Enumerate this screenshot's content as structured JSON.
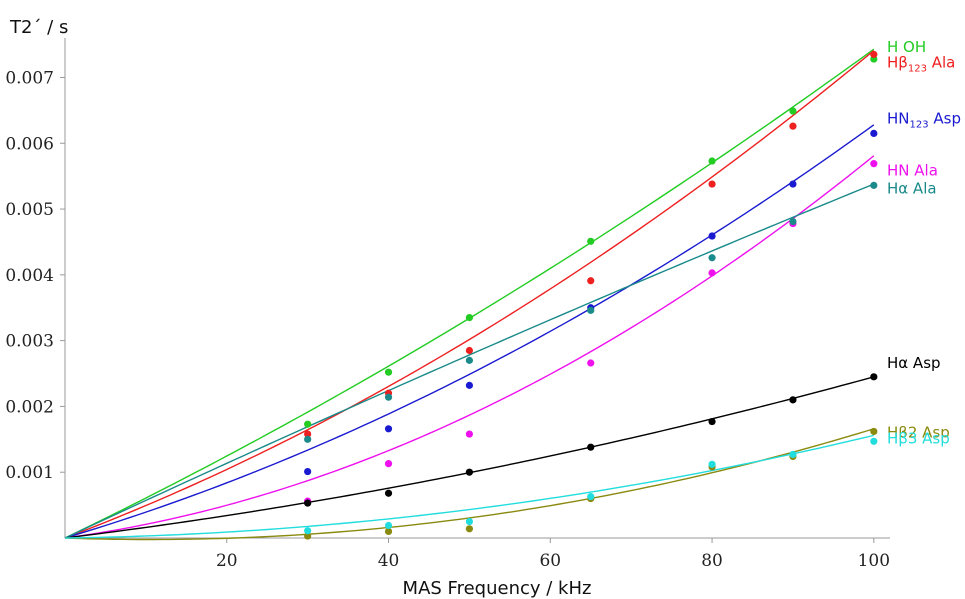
{
  "chart_data": {
    "type": "scatter",
    "xlabel": "MAS Frequency / kHz",
    "ylabel": "T2´ / s",
    "xlim": [
      0,
      102
    ],
    "ylim": [
      0,
      0.0076
    ],
    "x_ticks": [
      20,
      40,
      60,
      80,
      100
    ],
    "y_ticks": [
      0.001,
      0.002,
      0.003,
      0.004,
      0.005,
      0.006,
      0.007
    ],
    "x_tick_labels": [
      "20",
      "40",
      "60",
      "80",
      "100"
    ],
    "y_tick_labels": [
      "0.001",
      "0.002",
      "0.003",
      "0.004",
      "0.005",
      "0.006",
      "0.007"
    ],
    "x": [
      30,
      40,
      50,
      65,
      80,
      90,
      100
    ],
    "grid": false,
    "legend_placement": "right, inline labels",
    "series": [
      {
        "name": "H OH",
        "label_main": "H OH",
        "label_sub": "",
        "label_suffix": "",
        "color": "#22cc22",
        "values": [
          0.00173,
          0.00252,
          0.00335,
          0.00451,
          0.00573,
          0.00649,
          0.00728
        ],
        "fit": [
          0.0,
          5.93e-05,
          1.5e-07
        ]
      },
      {
        "name": "Hβ123 Ala",
        "label_main": "Hβ",
        "label_sub": "123",
        "label_suffix": " Ala",
        "color": "#ee2020",
        "values": [
          0.00158,
          0.0022,
          0.00285,
          0.00391,
          0.00538,
          0.00626,
          0.00735
        ],
        "fit": [
          0.0,
          4.66e-05,
          2.75e-07
        ]
      },
      {
        "name": "HN123 Asp",
        "label_main": "HN",
        "label_sub": "123",
        "label_suffix": " Asp",
        "color": "#1a1ad0",
        "values": [
          0.00101,
          0.00166,
          0.00232,
          0.0035,
          0.00459,
          0.00538,
          0.00615
        ],
        "fit": [
          0.0,
          3.67e-05,
          2.61e-07
        ]
      },
      {
        "name": "HN Ala",
        "label_main": "HN Ala",
        "label_sub": "",
        "label_suffix": "",
        "color": "#ee11ee",
        "values": [
          0.00056,
          0.00113,
          0.00158,
          0.00266,
          0.00403,
          0.00478,
          0.00569
        ],
        "fit": [
          0.0,
          1.66e-05,
          4.15e-07
        ]
      },
      {
        "name": "Hα Ala",
        "label_main": "Hα Ala",
        "label_sub": "",
        "label_suffix": "",
        "color": "#1a8a8a",
        "values": [
          0.0015,
          0.00214,
          0.0027,
          0.00346,
          0.00426,
          0.00481,
          0.00536
        ],
        "fit": [
          0.0,
          5.75e-05,
          -3.7e-08
        ]
      },
      {
        "name": "Hα Asp",
        "label_main": "Hα Asp",
        "label_sub": "",
        "label_suffix": "",
        "color": "#000000",
        "values": [
          0.00053,
          0.00068,
          0.001,
          0.00138,
          0.00177,
          0.0021,
          0.00245
        ],
        "fit": [
          0.0,
          1.52e-05,
          9.3e-08
        ]
      },
      {
        "name": "Hβ2 Asp",
        "label_main": "Hβ2 Asp",
        "label_sub": "",
        "label_suffix": "",
        "color": "#8a8a10",
        "values": [
          3e-05,
          0.0001,
          0.00014,
          0.0006,
          0.00108,
          0.00124,
          0.00162
        ],
        "fit": [
          0.0,
          -4.4e-06,
          2.1e-07
        ]
      },
      {
        "name": "Hβ3 Asp",
        "label_main": "Hβ3 Asp",
        "label_sub": "",
        "label_suffix": "",
        "color": "#22dddd",
        "values": [
          0.00011,
          0.00019,
          0.00025,
          0.00063,
          0.00112,
          0.00127,
          0.00147
        ],
        "fit": [
          0.0,
          1.7e-06,
          1.39e-07
        ]
      }
    ]
  }
}
